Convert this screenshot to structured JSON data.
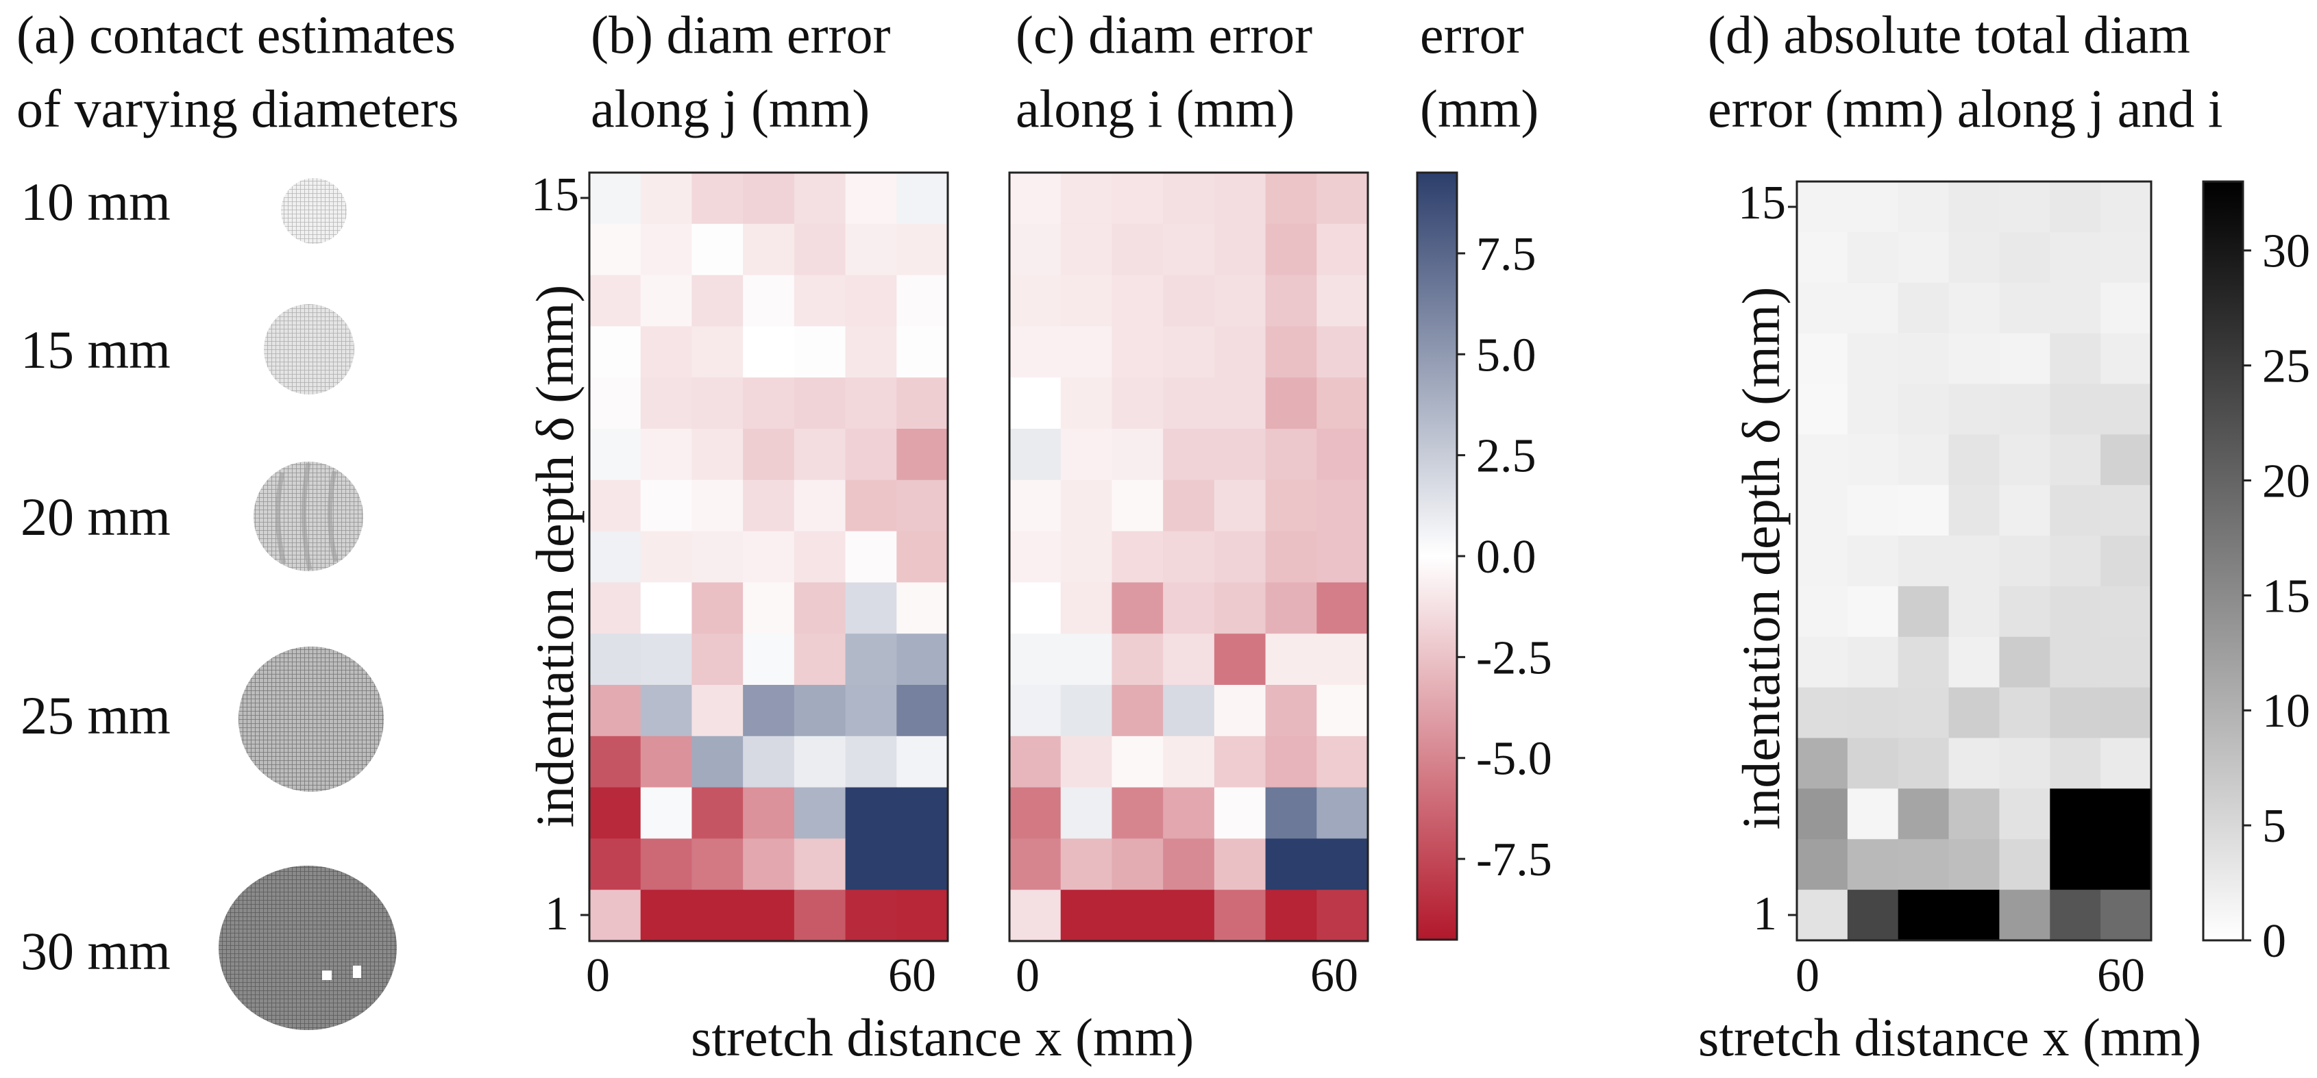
{
  "panel_a": {
    "title_line1": "(a) contact estimates",
    "title_line2": "of varying diameters",
    "items": [
      {
        "label": "10 mm",
        "diameter": 10
      },
      {
        "label": "15 mm",
        "diameter": 15
      },
      {
        "label": "20 mm",
        "diameter": 20
      },
      {
        "label": "25 mm",
        "diameter": 25
      },
      {
        "label": "30 mm",
        "diameter": 30
      }
    ]
  },
  "colorbar_diverging": {
    "title_line1": "error",
    "title_line2": "(mm)",
    "ticks": [
      "7.5",
      "5.0",
      "2.5",
      "0.0",
      "-2.5",
      "-5.0",
      "-7.5"
    ],
    "tick_values": [
      7.5,
      5.0,
      2.5,
      0.0,
      -2.5,
      -5.0,
      -7.5
    ],
    "range": [
      -9.5,
      9.5
    ],
    "colors": {
      "low": "#b2182b",
      "mid": "#ffffff",
      "high": "#2c3e6b"
    }
  },
  "colorbar_gray": {
    "ticks": [
      "30",
      "25",
      "20",
      "15",
      "10",
      "5",
      "0"
    ],
    "tick_values": [
      30,
      25,
      20,
      15,
      10,
      5,
      0
    ],
    "range": [
      0,
      33
    ],
    "colors": {
      "low": "#ffffff",
      "high": "#000000"
    }
  },
  "axes": {
    "xlabel": "stretch distance x (mm)",
    "ylabel": "indentation depth δ (mm)",
    "x_ticks": [
      "0",
      "60"
    ],
    "y_ticks": [
      "15",
      "1"
    ]
  },
  "chart_data": [
    {
      "type": "heatmap",
      "title_line1": "(b)  diam error",
      "title_line2": "along j (mm)",
      "x": [
        0,
        10,
        20,
        30,
        40,
        50,
        60
      ],
      "y": [
        15,
        14,
        13,
        12,
        11,
        10,
        9,
        8,
        7,
        6,
        5,
        4,
        3,
        2,
        1
      ],
      "values": [
        [
          0.5,
          -0.8,
          -1.6,
          -1.8,
          -1.3,
          -0.5,
          0.6
        ],
        [
          -0.3,
          -0.6,
          -0.1,
          -0.9,
          -1.4,
          -0.7,
          -0.8
        ],
        [
          -1.0,
          -0.4,
          -1.3,
          -0.2,
          -1.0,
          -1.1,
          -0.2
        ],
        [
          -0.1,
          -1.1,
          -0.9,
          0.0,
          0.1,
          -1.0,
          -0.1
        ],
        [
          -0.2,
          -1.2,
          -1.3,
          -1.6,
          -1.8,
          -1.6,
          -2.0
        ],
        [
          0.4,
          -0.6,
          -1.0,
          -2.0,
          -1.4,
          -1.9,
          -3.8
        ],
        [
          -1.0,
          -0.2,
          -0.4,
          -1.4,
          -0.6,
          -2.4,
          -2.3
        ],
        [
          0.7,
          -0.8,
          -0.7,
          -0.6,
          -1.1,
          -0.2,
          -2.4
        ],
        [
          -1.2,
          0.0,
          -2.6,
          -0.3,
          -2.2,
          1.7,
          -0.3
        ],
        [
          1.5,
          1.4,
          -2.3,
          0.3,
          -2.0,
          3.5,
          4.0
        ],
        [
          -3.5,
          3.3,
          -1.2,
          5.0,
          4.2,
          3.6,
          6.2
        ],
        [
          -7.0,
          -4.5,
          4.2,
          1.8,
          0.9,
          1.5,
          0.6
        ],
        [
          -8.8,
          0.3,
          -7.0,
          -4.5,
          3.7,
          9.5,
          9.5
        ],
        [
          -7.8,
          -6.2,
          -5.5,
          -3.6,
          -2.3,
          9.5,
          9.5
        ],
        [
          -2.5,
          -9.0,
          -9.0,
          -9.0,
          -6.8,
          -8.8,
          -8.9
        ]
      ]
    },
    {
      "type": "heatmap",
      "title_line1": "(c)  diam error",
      "title_line2": "along i (mm)",
      "x": [
        0,
        10,
        20,
        30,
        40,
        50,
        60
      ],
      "y": [
        15,
        14,
        13,
        12,
        11,
        10,
        9,
        8,
        7,
        6,
        5,
        4,
        3,
        2,
        1
      ],
      "values": [
        [
          -0.6,
          -1.0,
          -1.1,
          -1.3,
          -1.4,
          -2.4,
          -2.0
        ],
        [
          -0.7,
          -1.0,
          -1.3,
          -1.2,
          -1.4,
          -2.6,
          -1.5
        ],
        [
          -0.8,
          -0.9,
          -1.1,
          -1.4,
          -1.3,
          -2.3,
          -1.2
        ],
        [
          -0.6,
          -0.6,
          -1.1,
          -1.2,
          -1.4,
          -2.6,
          -1.8
        ],
        [
          0.0,
          -0.8,
          -1.2,
          -1.4,
          -1.4,
          -3.3,
          -2.4
        ],
        [
          1.0,
          -0.6,
          -0.7,
          -1.8,
          -1.8,
          -2.3,
          -2.7
        ],
        [
          -0.4,
          -0.8,
          -0.3,
          -2.2,
          -1.4,
          -2.4,
          -2.5
        ],
        [
          -0.6,
          -0.8,
          -1.5,
          -1.6,
          -1.8,
          -2.6,
          -2.5
        ],
        [
          0.0,
          -0.9,
          -4.2,
          -1.9,
          -2.2,
          -3.2,
          -5.3
        ],
        [
          0.5,
          0.5,
          -2.0,
          -1.3,
          -5.6,
          -0.8,
          -0.8
        ],
        [
          0.7,
          1.2,
          -3.4,
          1.8,
          -0.4,
          -2.9,
          -0.3
        ],
        [
          -3.0,
          -1.2,
          -0.3,
          -0.8,
          -2.1,
          -3.1,
          -2.1
        ],
        [
          -5.5,
          0.8,
          -5.0,
          -3.6,
          -0.2,
          6.6,
          4.3
        ],
        [
          -5.0,
          -2.8,
          -3.4,
          -4.8,
          -2.6,
          9.5,
          9.5
        ],
        [
          -1.3,
          -9.0,
          -9.0,
          -9.0,
          -6.1,
          -9.0,
          -8.2
        ]
      ]
    },
    {
      "type": "heatmap",
      "title_line1": "(d)  absolute total diam",
      "title_line2": "error (mm) along j and i",
      "x": [
        0,
        10,
        20,
        30,
        40,
        50,
        60
      ],
      "y": [
        15,
        14,
        13,
        12,
        11,
        10,
        9,
        8,
        7,
        6,
        5,
        4,
        3,
        2,
        1
      ],
      "values": [
        [
          1.6,
          1.6,
          2.0,
          2.6,
          2.4,
          3.0,
          2.4
        ],
        [
          1.3,
          1.9,
          1.7,
          2.4,
          2.9,
          2.4,
          2.3
        ],
        [
          1.6,
          1.5,
          2.5,
          1.9,
          2.5,
          2.5,
          1.5
        ],
        [
          1.1,
          1.9,
          2.1,
          1.7,
          1.6,
          3.3,
          2.2
        ],
        [
          0.9,
          1.9,
          2.3,
          2.7,
          2.9,
          3.8,
          3.8
        ],
        [
          1.6,
          1.7,
          2.1,
          3.5,
          2.6,
          3.3,
          5.8
        ],
        [
          1.5,
          1.2,
          1.1,
          3.3,
          2.1,
          3.9,
          3.8
        ],
        [
          1.6,
          1.9,
          2.5,
          2.5,
          2.9,
          3.5,
          4.6
        ],
        [
          1.4,
          1.1,
          6.3,
          2.4,
          3.6,
          4.3,
          4.2
        ],
        [
          2.0,
          2.3,
          4.3,
          2.0,
          6.6,
          4.3,
          4.3
        ],
        [
          4.4,
          4.5,
          4.4,
          6.3,
          4.5,
          5.9,
          6.1
        ],
        [
          10.3,
          5.6,
          5.0,
          2.6,
          3.0,
          4.0,
          2.7
        ],
        [
          13.5,
          1.3,
          11.7,
          7.6,
          3.8,
          33.0,
          33.0
        ],
        [
          12.3,
          9.0,
          8.9,
          8.4,
          5.0,
          33.0,
          33.0
        ],
        [
          3.8,
          24.0,
          33.0,
          33.0,
          13.0,
          22.0,
          19.2
        ]
      ]
    }
  ]
}
